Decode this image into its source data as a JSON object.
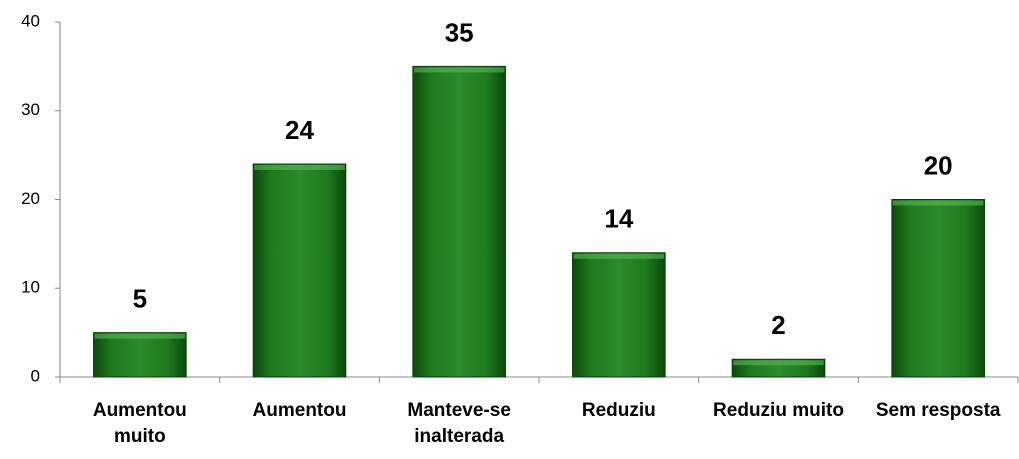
{
  "chart_data": {
    "type": "bar",
    "categories": [
      "Aumentou muito",
      "Aumentou",
      "Manteve-se inalterada",
      "Reduziu",
      "Reduziu muito",
      "Sem resposta"
    ],
    "values": [
      5,
      24,
      35,
      14,
      2,
      20
    ],
    "color": "#1e7a1e",
    "ylim": [
      0,
      40
    ],
    "yticks": [
      0,
      10,
      20,
      30,
      40
    ],
    "grid": false
  }
}
